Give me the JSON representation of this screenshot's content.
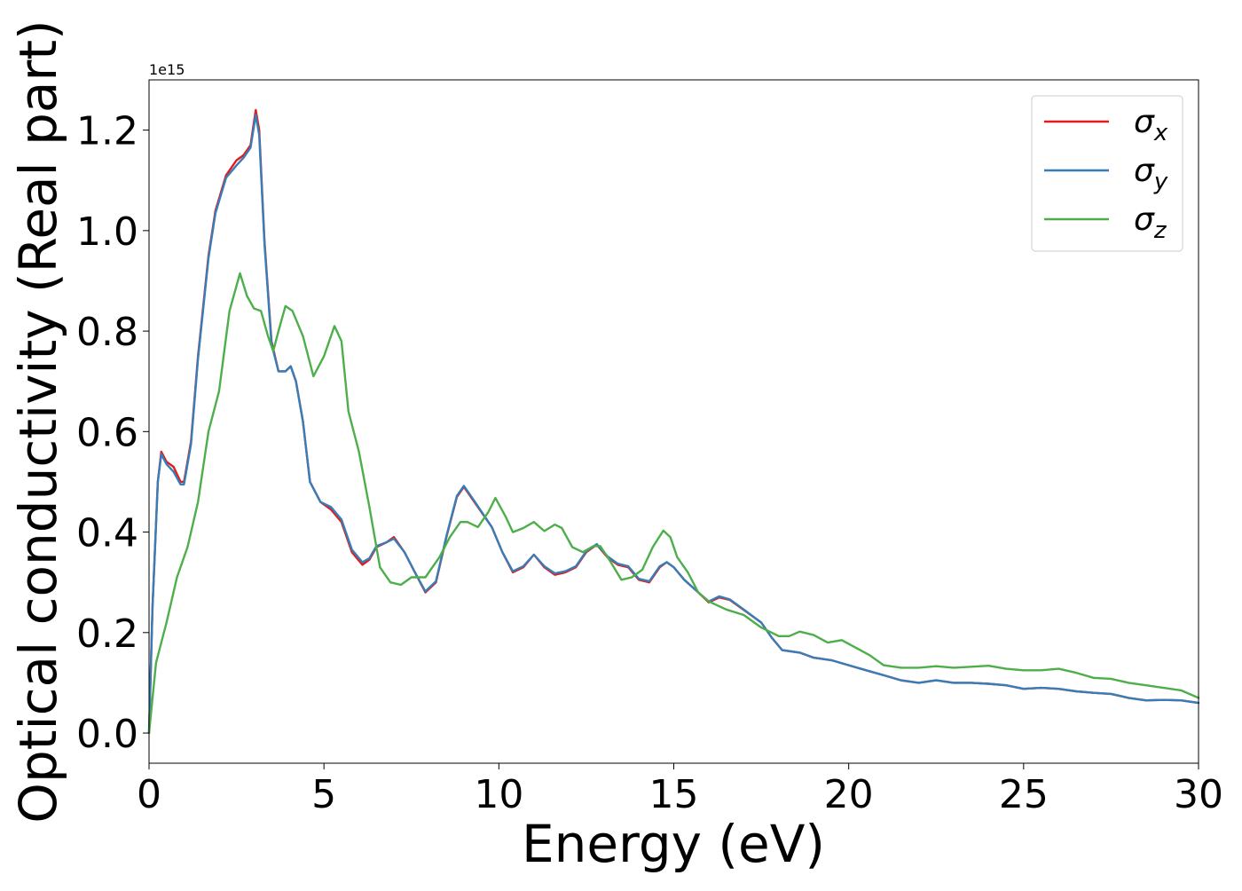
{
  "chart_data": {
    "type": "line",
    "title": "",
    "xlabel": "Energy (eV)",
    "ylabel": "Optical conductivity (Real part)",
    "y_offset_label": "1e15",
    "xlim": [
      0,
      30
    ],
    "ylim": [
      -0.06,
      1.3
    ],
    "x_ticks": [
      0,
      5,
      10,
      15,
      20,
      25,
      30
    ],
    "x_tick_labels": [
      "0",
      "5",
      "10",
      "15",
      "20",
      "25",
      "30"
    ],
    "y_ticks": [
      0.0,
      0.2,
      0.4,
      0.6,
      0.8,
      1.0,
      1.2
    ],
    "y_tick_labels": [
      "0.0",
      "0.2",
      "0.4",
      "0.6",
      "0.8",
      "1.0",
      "1.2"
    ],
    "grid": false,
    "legend_position": "top-right",
    "series": [
      {
        "name": "σx",
        "symbol": "σ",
        "subscript": "x",
        "color": "#e41a1c",
        "points": [
          [
            0,
            0.0
          ],
          [
            0.1,
            0.25
          ],
          [
            0.25,
            0.5
          ],
          [
            0.35,
            0.56
          ],
          [
            0.5,
            0.54
          ],
          [
            0.7,
            0.53
          ],
          [
            0.9,
            0.5
          ],
          [
            1.0,
            0.5
          ],
          [
            1.2,
            0.58
          ],
          [
            1.4,
            0.75
          ],
          [
            1.7,
            0.95
          ],
          [
            1.9,
            1.04
          ],
          [
            2.2,
            1.11
          ],
          [
            2.5,
            1.14
          ],
          [
            2.7,
            1.15
          ],
          [
            2.9,
            1.17
          ],
          [
            3.05,
            1.24
          ],
          [
            3.15,
            1.2
          ],
          [
            3.3,
            0.98
          ],
          [
            3.5,
            0.78
          ],
          [
            3.7,
            0.72
          ],
          [
            3.9,
            0.72
          ],
          [
            4.05,
            0.73
          ],
          [
            4.2,
            0.7
          ],
          [
            4.4,
            0.62
          ],
          [
            4.6,
            0.5
          ],
          [
            4.9,
            0.46
          ],
          [
            5.2,
            0.445
          ],
          [
            5.5,
            0.42
          ],
          [
            5.8,
            0.36
          ],
          [
            6.1,
            0.335
          ],
          [
            6.3,
            0.345
          ],
          [
            6.5,
            0.37
          ],
          [
            6.8,
            0.38
          ],
          [
            7.0,
            0.39
          ],
          [
            7.3,
            0.36
          ],
          [
            7.6,
            0.32
          ],
          [
            7.9,
            0.28
          ],
          [
            8.2,
            0.3
          ],
          [
            8.5,
            0.39
          ],
          [
            8.8,
            0.47
          ],
          [
            9.0,
            0.49
          ],
          [
            9.3,
            0.46
          ],
          [
            9.8,
            0.41
          ],
          [
            10.1,
            0.36
          ],
          [
            10.4,
            0.32
          ],
          [
            10.7,
            0.33
          ],
          [
            11.0,
            0.355
          ],
          [
            11.3,
            0.33
          ],
          [
            11.6,
            0.315
          ],
          [
            11.9,
            0.32
          ],
          [
            12.2,
            0.33
          ],
          [
            12.5,
            0.36
          ],
          [
            12.8,
            0.375
          ],
          [
            13.1,
            0.35
          ],
          [
            13.4,
            0.335
          ],
          [
            13.7,
            0.33
          ],
          [
            14.0,
            0.305
          ],
          [
            14.3,
            0.3
          ],
          [
            14.6,
            0.33
          ],
          [
            14.8,
            0.34
          ],
          [
            15.0,
            0.33
          ],
          [
            15.3,
            0.305
          ],
          [
            15.7,
            0.28
          ],
          [
            16.0,
            0.26
          ],
          [
            16.3,
            0.27
          ],
          [
            16.6,
            0.265
          ],
          [
            17.0,
            0.245
          ],
          [
            17.5,
            0.22
          ],
          [
            17.8,
            0.19
          ],
          [
            18.1,
            0.165
          ],
          [
            18.6,
            0.16
          ],
          [
            19.0,
            0.15
          ],
          [
            19.5,
            0.145
          ],
          [
            20.0,
            0.135
          ],
          [
            20.5,
            0.125
          ],
          [
            21.0,
            0.115
          ],
          [
            21.5,
            0.105
          ],
          [
            22.0,
            0.1
          ],
          [
            22.5,
            0.105
          ],
          [
            23.0,
            0.1
          ],
          [
            23.5,
            0.1
          ],
          [
            24.0,
            0.098
          ],
          [
            24.5,
            0.095
          ],
          [
            25.0,
            0.088
          ],
          [
            25.5,
            0.09
          ],
          [
            26.0,
            0.088
          ],
          [
            26.5,
            0.083
          ],
          [
            27.0,
            0.08
          ],
          [
            27.5,
            0.078
          ],
          [
            28.0,
            0.07
          ],
          [
            28.5,
            0.065
          ],
          [
            29.0,
            0.066
          ],
          [
            29.5,
            0.065
          ],
          [
            30.0,
            0.06
          ]
        ]
      },
      {
        "name": "σy",
        "symbol": "σ",
        "subscript": "y",
        "color": "#377eb8",
        "points": [
          [
            0,
            0.0
          ],
          [
            0.1,
            0.25
          ],
          [
            0.25,
            0.5
          ],
          [
            0.35,
            0.555
          ],
          [
            0.5,
            0.535
          ],
          [
            0.7,
            0.52
          ],
          [
            0.9,
            0.495
          ],
          [
            1.0,
            0.495
          ],
          [
            1.2,
            0.575
          ],
          [
            1.4,
            0.745
          ],
          [
            1.7,
            0.945
          ],
          [
            1.9,
            1.035
          ],
          [
            2.2,
            1.105
          ],
          [
            2.5,
            1.13
          ],
          [
            2.7,
            1.145
          ],
          [
            2.9,
            1.165
          ],
          [
            3.05,
            1.23
          ],
          [
            3.15,
            1.19
          ],
          [
            3.3,
            0.975
          ],
          [
            3.5,
            0.775
          ],
          [
            3.7,
            0.72
          ],
          [
            3.9,
            0.72
          ],
          [
            4.05,
            0.73
          ],
          [
            4.2,
            0.7
          ],
          [
            4.4,
            0.62
          ],
          [
            4.6,
            0.5
          ],
          [
            4.9,
            0.46
          ],
          [
            5.2,
            0.45
          ],
          [
            5.5,
            0.425
          ],
          [
            5.8,
            0.365
          ],
          [
            6.1,
            0.34
          ],
          [
            6.3,
            0.348
          ],
          [
            6.5,
            0.372
          ],
          [
            6.8,
            0.38
          ],
          [
            7.0,
            0.387
          ],
          [
            7.3,
            0.36
          ],
          [
            7.6,
            0.32
          ],
          [
            7.9,
            0.282
          ],
          [
            8.2,
            0.302
          ],
          [
            8.5,
            0.392
          ],
          [
            8.8,
            0.472
          ],
          [
            9.0,
            0.492
          ],
          [
            9.3,
            0.462
          ],
          [
            9.8,
            0.41
          ],
          [
            10.1,
            0.36
          ],
          [
            10.4,
            0.322
          ],
          [
            10.7,
            0.332
          ],
          [
            11.0,
            0.355
          ],
          [
            11.3,
            0.332
          ],
          [
            11.6,
            0.318
          ],
          [
            11.9,
            0.322
          ],
          [
            12.2,
            0.332
          ],
          [
            12.5,
            0.362
          ],
          [
            12.8,
            0.376
          ],
          [
            13.1,
            0.352
          ],
          [
            13.4,
            0.337
          ],
          [
            13.7,
            0.332
          ],
          [
            14.0,
            0.307
          ],
          [
            14.3,
            0.302
          ],
          [
            14.6,
            0.332
          ],
          [
            14.8,
            0.34
          ],
          [
            15.0,
            0.33
          ],
          [
            15.3,
            0.305
          ],
          [
            15.7,
            0.28
          ],
          [
            16.0,
            0.262
          ],
          [
            16.3,
            0.272
          ],
          [
            16.6,
            0.266
          ],
          [
            17.0,
            0.246
          ],
          [
            17.5,
            0.22
          ],
          [
            17.8,
            0.19
          ],
          [
            18.1,
            0.165
          ],
          [
            18.6,
            0.16
          ],
          [
            19.0,
            0.15
          ],
          [
            19.5,
            0.145
          ],
          [
            20.0,
            0.135
          ],
          [
            20.5,
            0.125
          ],
          [
            21.0,
            0.115
          ],
          [
            21.5,
            0.105
          ],
          [
            22.0,
            0.1
          ],
          [
            22.5,
            0.105
          ],
          [
            23.0,
            0.1
          ],
          [
            23.5,
            0.1
          ],
          [
            24.0,
            0.098
          ],
          [
            24.5,
            0.095
          ],
          [
            25.0,
            0.088
          ],
          [
            25.5,
            0.09
          ],
          [
            26.0,
            0.088
          ],
          [
            26.5,
            0.083
          ],
          [
            27.0,
            0.08
          ],
          [
            27.5,
            0.078
          ],
          [
            28.0,
            0.07
          ],
          [
            28.5,
            0.065
          ],
          [
            29.0,
            0.066
          ],
          [
            29.5,
            0.065
          ],
          [
            30.0,
            0.06
          ]
        ]
      },
      {
        "name": "σz",
        "symbol": "σ",
        "subscript": "z",
        "color": "#4daf4a",
        "points": [
          [
            0,
            0.0
          ],
          [
            0.2,
            0.14
          ],
          [
            0.5,
            0.22
          ],
          [
            0.8,
            0.31
          ],
          [
            1.1,
            0.37
          ],
          [
            1.4,
            0.46
          ],
          [
            1.7,
            0.6
          ],
          [
            2.0,
            0.68
          ],
          [
            2.3,
            0.84
          ],
          [
            2.6,
            0.915
          ],
          [
            2.8,
            0.87
          ],
          [
            3.0,
            0.845
          ],
          [
            3.2,
            0.84
          ],
          [
            3.4,
            0.79
          ],
          [
            3.55,
            0.76
          ],
          [
            3.7,
            0.8
          ],
          [
            3.9,
            0.85
          ],
          [
            4.1,
            0.84
          ],
          [
            4.4,
            0.79
          ],
          [
            4.7,
            0.71
          ],
          [
            5.0,
            0.75
          ],
          [
            5.3,
            0.81
          ],
          [
            5.5,
            0.78
          ],
          [
            5.7,
            0.64
          ],
          [
            6.0,
            0.56
          ],
          [
            6.3,
            0.45
          ],
          [
            6.6,
            0.33
          ],
          [
            6.9,
            0.3
          ],
          [
            7.2,
            0.295
          ],
          [
            7.5,
            0.31
          ],
          [
            7.9,
            0.31
          ],
          [
            8.3,
            0.35
          ],
          [
            8.6,
            0.39
          ],
          [
            8.9,
            0.42
          ],
          [
            9.1,
            0.42
          ],
          [
            9.4,
            0.41
          ],
          [
            9.7,
            0.44
          ],
          [
            9.9,
            0.468
          ],
          [
            10.2,
            0.43
          ],
          [
            10.4,
            0.4
          ],
          [
            10.7,
            0.408
          ],
          [
            11.0,
            0.42
          ],
          [
            11.3,
            0.402
          ],
          [
            11.6,
            0.415
          ],
          [
            11.8,
            0.408
          ],
          [
            12.1,
            0.37
          ],
          [
            12.4,
            0.36
          ],
          [
            12.7,
            0.372
          ],
          [
            12.9,
            0.372
          ],
          [
            13.2,
            0.34
          ],
          [
            13.5,
            0.305
          ],
          [
            13.8,
            0.31
          ],
          [
            14.1,
            0.325
          ],
          [
            14.4,
            0.37
          ],
          [
            14.7,
            0.403
          ],
          [
            14.9,
            0.39
          ],
          [
            15.1,
            0.35
          ],
          [
            15.4,
            0.32
          ],
          [
            15.7,
            0.28
          ],
          [
            16.0,
            0.262
          ],
          [
            16.5,
            0.246
          ],
          [
            17.0,
            0.235
          ],
          [
            17.5,
            0.21
          ],
          [
            18.0,
            0.193
          ],
          [
            18.3,
            0.193
          ],
          [
            18.6,
            0.202
          ],
          [
            19.0,
            0.195
          ],
          [
            19.4,
            0.18
          ],
          [
            19.8,
            0.185
          ],
          [
            20.2,
            0.17
          ],
          [
            20.6,
            0.155
          ],
          [
            21.0,
            0.135
          ],
          [
            21.5,
            0.13
          ],
          [
            22.0,
            0.13
          ],
          [
            22.5,
            0.133
          ],
          [
            23.0,
            0.13
          ],
          [
            23.5,
            0.132
          ],
          [
            24.0,
            0.134
          ],
          [
            24.5,
            0.128
          ],
          [
            25.0,
            0.125
          ],
          [
            25.5,
            0.125
          ],
          [
            26.0,
            0.128
          ],
          [
            26.5,
            0.12
          ],
          [
            27.0,
            0.11
          ],
          [
            27.5,
            0.108
          ],
          [
            28.0,
            0.1
          ],
          [
            28.5,
            0.095
          ],
          [
            29.0,
            0.09
          ],
          [
            29.5,
            0.085
          ],
          [
            30.0,
            0.07
          ]
        ]
      }
    ]
  }
}
